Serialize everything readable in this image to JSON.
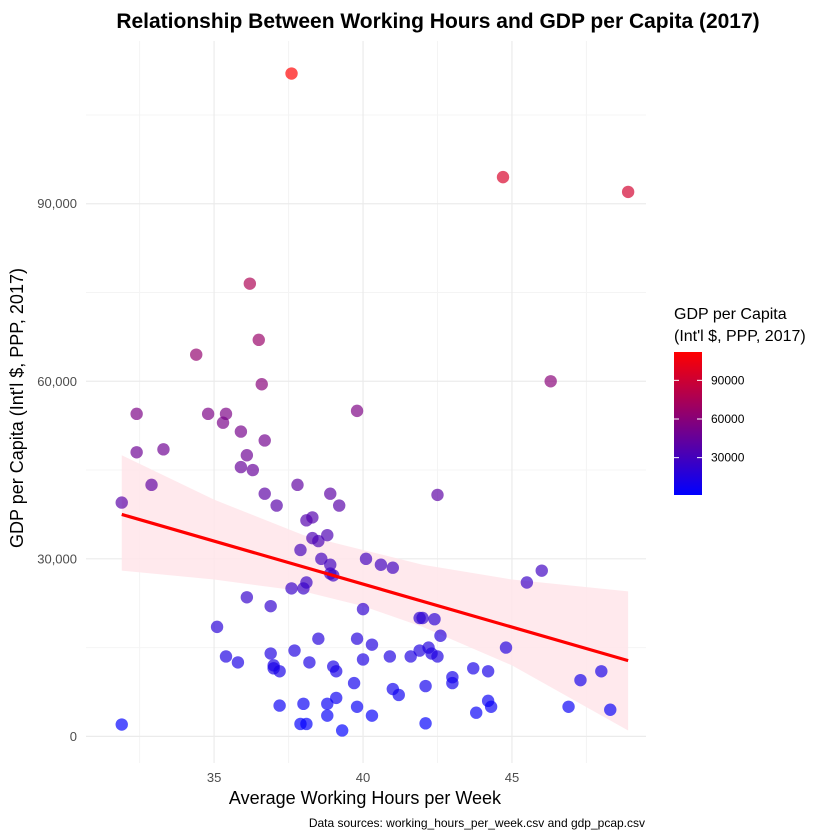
{
  "chart_data": {
    "type": "scatter",
    "title": "Relationship Between Working Hours and GDP per Capita (2017)",
    "xlabel": "Average Working Hours per Week",
    "ylabel": "GDP per Capita (Int'l $, PPP, 2017)",
    "caption": "Data sources: working_hours_per_week.csv and gdp_pcap.csv",
    "xlim": [
      30.7,
      49.5
    ],
    "ylim": [
      -4500,
      117500
    ],
    "x_ticks": [
      35,
      40,
      45
    ],
    "x_tick_labels": [
      "35",
      "40",
      "45"
    ],
    "y_ticks": [
      0,
      30000,
      60000,
      90000
    ],
    "y_tick_labels": [
      "0",
      "30,000",
      "60,000",
      "90,000"
    ],
    "grid": true,
    "legend": {
      "title_lines": [
        "GDP per Capita",
        "(Int'l $, PPP, 2017)"
      ],
      "placement": "right",
      "low_color": "#0000ff",
      "high_color": "#ff0000",
      "range": [
        1000,
        112000
      ],
      "ticks": [
        30000,
        60000,
        90000
      ],
      "tick_labels": [
        "30000",
        "60000",
        "90000"
      ]
    },
    "trend_line": {
      "color": "#ff0000",
      "x": [
        31.9,
        48.9
      ],
      "y": [
        37500,
        12800
      ]
    },
    "confidence_band": {
      "color": "#ffe5ea",
      "x": [
        31.9,
        35,
        38,
        40,
        42,
        45,
        48.9
      ],
      "lower": [
        28000,
        26500,
        24500,
        22000,
        18500,
        12000,
        1000
      ],
      "upper": [
        47500,
        40000,
        34000,
        31500,
        29000,
        26500,
        24500
      ]
    },
    "points": [
      {
        "x": 37.6,
        "y": 112000
      },
      {
        "x": 44.7,
        "y": 94500
      },
      {
        "x": 48.9,
        "y": 92000
      },
      {
        "x": 36.2,
        "y": 76500
      },
      {
        "x": 36.5,
        "y": 67000
      },
      {
        "x": 34.4,
        "y": 64500
      },
      {
        "x": 46.3,
        "y": 60000
      },
      {
        "x": 36.6,
        "y": 59500
      },
      {
        "x": 39.8,
        "y": 55000
      },
      {
        "x": 32.4,
        "y": 54500
      },
      {
        "x": 34.8,
        "y": 54500
      },
      {
        "x": 35.4,
        "y": 54500
      },
      {
        "x": 35.3,
        "y": 53000
      },
      {
        "x": 35.9,
        "y": 51500
      },
      {
        "x": 36.7,
        "y": 50000
      },
      {
        "x": 32.4,
        "y": 48000
      },
      {
        "x": 33.3,
        "y": 48500
      },
      {
        "x": 36.1,
        "y": 47500
      },
      {
        "x": 35.9,
        "y": 45500
      },
      {
        "x": 36.3,
        "y": 45000
      },
      {
        "x": 32.9,
        "y": 42500
      },
      {
        "x": 37.8,
        "y": 42500
      },
      {
        "x": 36.7,
        "y": 41000
      },
      {
        "x": 38.9,
        "y": 41000
      },
      {
        "x": 42.5,
        "y": 40800
      },
      {
        "x": 31.9,
        "y": 39500
      },
      {
        "x": 37.1,
        "y": 39000
      },
      {
        "x": 39.2,
        "y": 39000
      },
      {
        "x": 38.1,
        "y": 36500
      },
      {
        "x": 38.3,
        "y": 37000
      },
      {
        "x": 38.8,
        "y": 34000
      },
      {
        "x": 38.3,
        "y": 33500
      },
      {
        "x": 38.5,
        "y": 33000
      },
      {
        "x": 37.9,
        "y": 31500
      },
      {
        "x": 38.6,
        "y": 30000
      },
      {
        "x": 40.1,
        "y": 30000
      },
      {
        "x": 40.6,
        "y": 29000
      },
      {
        "x": 38.9,
        "y": 29000
      },
      {
        "x": 41.0,
        "y": 28500
      },
      {
        "x": 46.0,
        "y": 28000
      },
      {
        "x": 38.9,
        "y": 27500
      },
      {
        "x": 39.0,
        "y": 27200
      },
      {
        "x": 45.5,
        "y": 26000
      },
      {
        "x": 38.1,
        "y": 26000
      },
      {
        "x": 37.6,
        "y": 25000
      },
      {
        "x": 38.0,
        "y": 25000
      },
      {
        "x": 36.1,
        "y": 23500
      },
      {
        "x": 36.9,
        "y": 22000
      },
      {
        "x": 40.0,
        "y": 21500
      },
      {
        "x": 41.9,
        "y": 20000
      },
      {
        "x": 42.0,
        "y": 20000
      },
      {
        "x": 42.4,
        "y": 19800
      },
      {
        "x": 35.1,
        "y": 18500
      },
      {
        "x": 42.6,
        "y": 17000
      },
      {
        "x": 38.5,
        "y": 16500
      },
      {
        "x": 39.8,
        "y": 16500
      },
      {
        "x": 40.3,
        "y": 15500
      },
      {
        "x": 42.2,
        "y": 15000
      },
      {
        "x": 44.8,
        "y": 15000
      },
      {
        "x": 36.9,
        "y": 14000
      },
      {
        "x": 37.7,
        "y": 14500
      },
      {
        "x": 41.9,
        "y": 14500
      },
      {
        "x": 42.3,
        "y": 14000
      },
      {
        "x": 42.5,
        "y": 13500
      },
      {
        "x": 35.4,
        "y": 13500
      },
      {
        "x": 35.8,
        "y": 12500
      },
      {
        "x": 38.2,
        "y": 12500
      },
      {
        "x": 40.0,
        "y": 13000
      },
      {
        "x": 40.9,
        "y": 13500
      },
      {
        "x": 41.6,
        "y": 13500
      },
      {
        "x": 37.0,
        "y": 12000
      },
      {
        "x": 37.0,
        "y": 11500
      },
      {
        "x": 37.2,
        "y": 11000
      },
      {
        "x": 39.0,
        "y": 11800
      },
      {
        "x": 39.1,
        "y": 11000
      },
      {
        "x": 43.7,
        "y": 11500
      },
      {
        "x": 44.2,
        "y": 11000
      },
      {
        "x": 43.0,
        "y": 10000
      },
      {
        "x": 43.0,
        "y": 9000
      },
      {
        "x": 47.3,
        "y": 9500
      },
      {
        "x": 48.0,
        "y": 11000
      },
      {
        "x": 39.7,
        "y": 9000
      },
      {
        "x": 42.1,
        "y": 8500
      },
      {
        "x": 41.0,
        "y": 8000
      },
      {
        "x": 41.2,
        "y": 7000
      },
      {
        "x": 39.1,
        "y": 6500
      },
      {
        "x": 44.2,
        "y": 6000
      },
      {
        "x": 37.2,
        "y": 5200
      },
      {
        "x": 38.0,
        "y": 5500
      },
      {
        "x": 38.8,
        "y": 5500
      },
      {
        "x": 39.8,
        "y": 5000
      },
      {
        "x": 44.3,
        "y": 5000
      },
      {
        "x": 46.9,
        "y": 5000
      },
      {
        "x": 48.3,
        "y": 4500
      },
      {
        "x": 38.8,
        "y": 3500
      },
      {
        "x": 40.3,
        "y": 3500
      },
      {
        "x": 43.8,
        "y": 4000
      },
      {
        "x": 37.9,
        "y": 2100
      },
      {
        "x": 38.1,
        "y": 2100
      },
      {
        "x": 42.1,
        "y": 2200
      },
      {
        "x": 31.9,
        "y": 2000
      },
      {
        "x": 39.3,
        "y": 1000
      }
    ]
  }
}
